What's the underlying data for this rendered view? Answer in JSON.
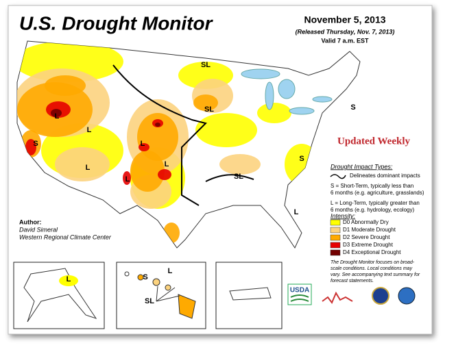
{
  "header": {
    "title": "U.S. Drought Monitor",
    "date": "November 5, 2013",
    "released": "(Released Thursday, Nov. 7, 2013)",
    "valid": "Valid 7 a.m. EST",
    "badge": "Updated Weekly"
  },
  "impact_types": {
    "title": "Drought Impact Types:",
    "line": "Delineates dominant impacts",
    "short_term": [
      "S = Short-Term, typically less than",
      "6 months (e.g. agriculture, grasslands)"
    ],
    "long_term": [
      "L = Long-Term, typically greater than",
      "6 months (e.g. hydrology, ecology)"
    ]
  },
  "intensity": {
    "title": "Intensity:",
    "items": [
      {
        "label": "D0 Abnormally Dry",
        "color": "#ffff00"
      },
      {
        "label": "D1 Moderate Drought",
        "color": "#fcd37f"
      },
      {
        "label": "D2 Severe Drought",
        "color": "#ffaa00"
      },
      {
        "label": "D3 Extreme Drought",
        "color": "#e60000"
      },
      {
        "label": "D4 Exceptional Drought",
        "color": "#730000"
      }
    ]
  },
  "note": [
    "The Drought Monitor focuses on broad-",
    "scale conditions. Local conditions may",
    "vary. See accompanying text summary for",
    "forecast statements."
  ],
  "author": {
    "label": "Author:",
    "name": "David Simeral",
    "org": "Western Regional Climate Center"
  },
  "map_labels": [
    "SL",
    "S",
    "SL",
    "L",
    "L",
    "S",
    "L",
    "L",
    "L",
    "L",
    "SL",
    "S",
    "L"
  ],
  "inset_labels": [
    "L",
    "S",
    "L",
    "SL"
  ],
  "logo": "USDA"
}
